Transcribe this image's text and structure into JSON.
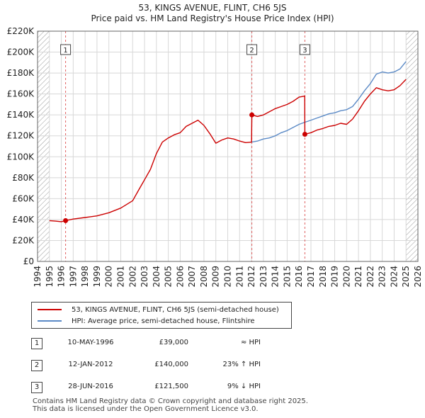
{
  "title_line1": "53, KINGS AVENUE, FLINT, CH6 5JS",
  "title_line2": "Price paid vs. HM Land Registry's House Price Index (HPI)",
  "legend": {
    "property": "53, KINGS AVENUE, FLINT, CH6 5JS (semi-detached house)",
    "hpi": "HPI: Average price, semi-detached house, Flintshire"
  },
  "transactions": [
    {
      "num": "1",
      "date": "10-MAY-1996",
      "price": "£39,000",
      "hpi_rel": "≈ HPI"
    },
    {
      "num": "2",
      "date": "12-JAN-2012",
      "price": "£140,000",
      "hpi_rel": "23% ↑ HPI"
    },
    {
      "num": "3",
      "date": "28-JUN-2016",
      "price": "£121,500",
      "hpi_rel": "9% ↓ HPI"
    }
  ],
  "footer_line1": "Contains HM Land Registry data © Crown copyright and database right 2025.",
  "footer_line2": "This data is licensed under the Open Government Licence v3.0.",
  "colors": {
    "property": "#cc0000",
    "hpi": "#5b8ac6",
    "grid": "#d8d8d8",
    "hatch": "#888888"
  },
  "chart_data": {
    "type": "line",
    "xlim": [
      1994,
      2026
    ],
    "ylim": [
      0,
      220000
    ],
    "x_ticks": [
      1994,
      1995,
      1996,
      1997,
      1998,
      1999,
      2000,
      2001,
      2002,
      2003,
      2004,
      2005,
      2006,
      2007,
      2008,
      2009,
      2010,
      2011,
      2012,
      2013,
      2014,
      2015,
      2016,
      2017,
      2018,
      2019,
      2020,
      2021,
      2022,
      2023,
      2024,
      2025,
      2026
    ],
    "y_ticks": [
      {
        "value": 0,
        "label": "£0"
      },
      {
        "value": 20000,
        "label": "£20K"
      },
      {
        "value": 40000,
        "label": "£40K"
      },
      {
        "value": 60000,
        "label": "£60K"
      },
      {
        "value": 80000,
        "label": "£80K"
      },
      {
        "value": 100000,
        "label": "£100K"
      },
      {
        "value": 120000,
        "label": "£120K"
      },
      {
        "value": 140000,
        "label": "£140K"
      },
      {
        "value": 160000,
        "label": "£160K"
      },
      {
        "value": 180000,
        "label": "£180K"
      },
      {
        "value": 200000,
        "label": "£200K"
      },
      {
        "value": 220000,
        "label": "£220K"
      }
    ],
    "hatch_ranges": [
      [
        1994,
        1995
      ],
      [
        2025,
        2026
      ]
    ],
    "sales": [
      {
        "label": "1",
        "x": 1996.36,
        "price": 39000
      },
      {
        "label": "2",
        "x": 2012.03,
        "price": 140000
      },
      {
        "label": "3",
        "x": 2016.49,
        "price": 121500
      }
    ],
    "series": [
      {
        "name": "53, KINGS AVENUE, FLINT, CH6 5JS (semi-detached house)",
        "points": [
          [
            1995.0,
            39000
          ],
          [
            1995.5,
            38500
          ],
          [
            1996.0,
            38000
          ],
          [
            1996.36,
            39000
          ],
          [
            1997,
            40500
          ],
          [
            1998,
            42000
          ],
          [
            1999,
            43500
          ],
          [
            2000,
            46500
          ],
          [
            2001,
            51000
          ],
          [
            2002,
            58000
          ],
          [
            2002.5,
            68000
          ],
          [
            2003,
            78000
          ],
          [
            2003.5,
            88000
          ],
          [
            2004,
            103000
          ],
          [
            2004.5,
            114000
          ],
          [
            2005,
            118000
          ],
          [
            2005.5,
            121000
          ],
          [
            2006,
            123000
          ],
          [
            2006.5,
            129000
          ],
          [
            2007,
            132000
          ],
          [
            2007.5,
            135000
          ],
          [
            2008,
            130000
          ],
          [
            2008.5,
            122000
          ],
          [
            2009,
            113000
          ],
          [
            2009.5,
            116000
          ],
          [
            2010,
            118000
          ],
          [
            2010.5,
            117000
          ],
          [
            2011,
            115000
          ],
          [
            2011.5,
            113500
          ],
          [
            2012.0,
            114000
          ],
          [
            2012.03,
            140000
          ],
          [
            2012.5,
            138500
          ],
          [
            2013,
            140000
          ],
          [
            2013.5,
            143000
          ],
          [
            2014,
            146000
          ],
          [
            2014.5,
            148000
          ],
          [
            2015,
            150000
          ],
          [
            2015.5,
            153000
          ],
          [
            2016,
            157000
          ],
          [
            2016.48,
            158000
          ],
          [
            2016.49,
            121500
          ],
          [
            2017,
            123000
          ],
          [
            2017.5,
            125500
          ],
          [
            2018,
            127000
          ],
          [
            2018.5,
            129000
          ],
          [
            2019,
            130000
          ],
          [
            2019.5,
            132000
          ],
          [
            2020,
            131000
          ],
          [
            2020.5,
            136000
          ],
          [
            2021,
            144000
          ],
          [
            2021.5,
            153000
          ],
          [
            2022,
            160000
          ],
          [
            2022.5,
            166000
          ],
          [
            2023,
            164000
          ],
          [
            2023.5,
            163000
          ],
          [
            2024,
            164000
          ],
          [
            2024.5,
            168000
          ],
          [
            2025.0,
            174000
          ]
        ]
      },
      {
        "name": "HPI: Average price, semi-detached house, Flintshire",
        "points": [
          [
            2012.0,
            114000
          ],
          [
            2012.5,
            115000
          ],
          [
            2013,
            117000
          ],
          [
            2013.5,
            118000
          ],
          [
            2014,
            120000
          ],
          [
            2014.5,
            123000
          ],
          [
            2015,
            125000
          ],
          [
            2015.5,
            128000
          ],
          [
            2016,
            131000
          ],
          [
            2016.5,
            133000
          ],
          [
            2017,
            135000
          ],
          [
            2017.5,
            137000
          ],
          [
            2018,
            139000
          ],
          [
            2018.5,
            141000
          ],
          [
            2019,
            142000
          ],
          [
            2019.5,
            144000
          ],
          [
            2020,
            145000
          ],
          [
            2020.5,
            148000
          ],
          [
            2021,
            155000
          ],
          [
            2021.5,
            163000
          ],
          [
            2022,
            170000
          ],
          [
            2022.5,
            179000
          ],
          [
            2023,
            181000
          ],
          [
            2023.5,
            180000
          ],
          [
            2024,
            181000
          ],
          [
            2024.5,
            184000
          ],
          [
            2025.0,
            191000
          ]
        ]
      }
    ]
  }
}
